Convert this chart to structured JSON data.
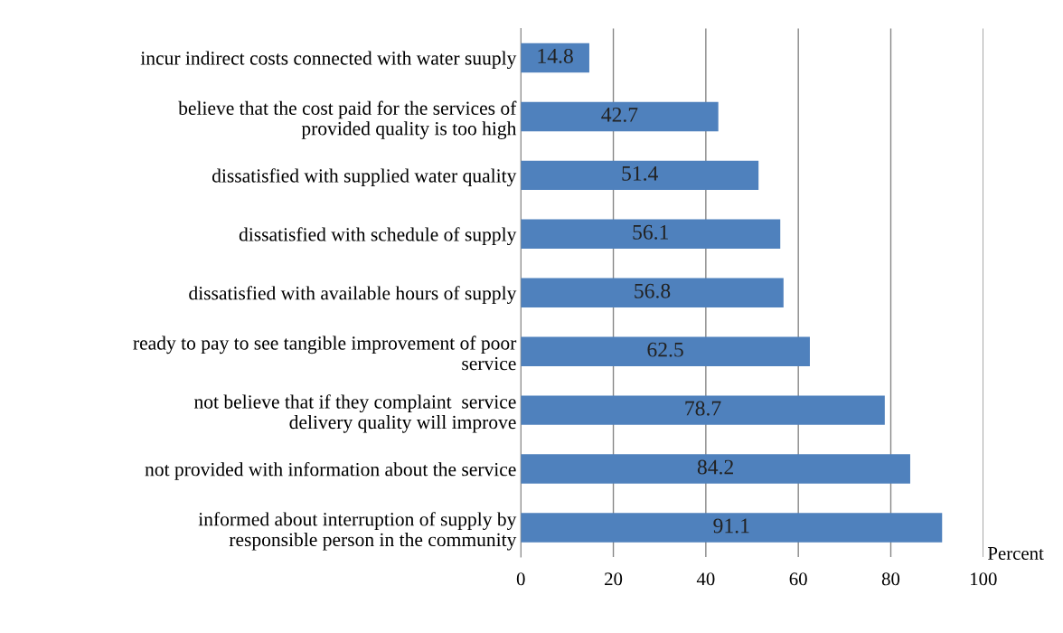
{
  "chart_data": {
    "type": "bar",
    "orientation": "horizontal",
    "xlabel": "Percent",
    "categories": [
      "incur indirect costs connected with water suuply",
      "believe that the cost paid for the services of\nprovided quality is too high",
      "dissatisfied with supplied water quality",
      "dissatisfied with schedule of supply",
      "dissatisfied with available hours of supply",
      "ready to pay to see tangible improvement of poor\nservice",
      "not believe that if they complaint  service\ndelivery quality will improve",
      "not provided with information about the service",
      "informed about interruption of supply by\nresponsible person in the community"
    ],
    "values": [
      14.8,
      42.7,
      51.4,
      56.1,
      56.8,
      62.5,
      78.7,
      84.2,
      91.1
    ],
    "color": "#4f81bd",
    "data_labels": true,
    "xlim": [
      0,
      100
    ],
    "xticks": [
      0,
      20,
      40,
      60,
      80,
      100
    ],
    "grid": "x",
    "legend": false
  }
}
